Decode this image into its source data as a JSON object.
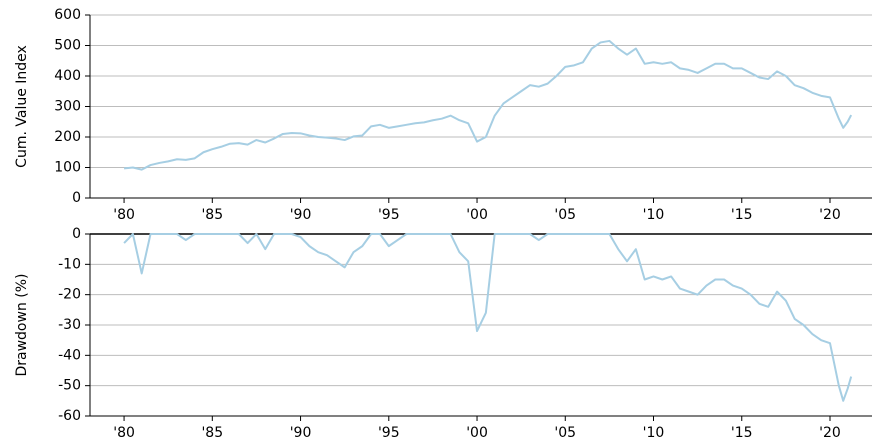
{
  "chart_data": [
    {
      "type": "line",
      "ylabel": "Cum. Value Index",
      "x": [
        1980,
        1980.5,
        1981,
        1981.5,
        1982,
        1982.5,
        1983,
        1983.5,
        1984,
        1984.5,
        1985,
        1985.5,
        1986,
        1986.5,
        1987,
        1987.5,
        1988,
        1988.5,
        1989,
        1989.5,
        1990,
        1990.5,
        1991,
        1991.5,
        1992,
        1992.5,
        1993,
        1993.5,
        1994,
        1994.5,
        1995,
        1995.5,
        1996,
        1996.5,
        1997,
        1997.5,
        1998,
        1998.5,
        1999,
        1999.5,
        2000,
        2000.5,
        2001,
        2001.5,
        2002,
        2002.5,
        2003,
        2003.5,
        2004,
        2004.5,
        2005,
        2005.5,
        2006,
        2006.5,
        2007,
        2007.5,
        2008,
        2008.5,
        2009,
        2009.5,
        2010,
        2010.5,
        2011,
        2011.5,
        2012,
        2012.5,
        2013,
        2013.5,
        2014,
        2014.5,
        2015,
        2015.5,
        2016,
        2016.5,
        2017,
        2017.5,
        2018,
        2018.5,
        2019,
        2019.5,
        2020,
        2020.5,
        2020.75,
        2021,
        2021.2
      ],
      "series": [
        {
          "color": "#a6cee3",
          "values": [
            97,
            100,
            93,
            108,
            115,
            120,
            127,
            125,
            130,
            150,
            160,
            168,
            178,
            180,
            175,
            190,
            182,
            195,
            210,
            213,
            212,
            205,
            200,
            198,
            195,
            190,
            202,
            205,
            235,
            240,
            230,
            235,
            240,
            245,
            248,
            255,
            260,
            270,
            255,
            245,
            185,
            200,
            270,
            310,
            330,
            350,
            370,
            365,
            375,
            400,
            430,
            435,
            445,
            490,
            510,
            515,
            490,
            470,
            490,
            440,
            445,
            440,
            445,
            425,
            420,
            410,
            425,
            440,
            440,
            425,
            425,
            410,
            395,
            390,
            415,
            400,
            370,
            360,
            345,
            335,
            330,
            260,
            230,
            250,
            272
          ]
        }
      ],
      "xlim": [
        1978.07,
        2022.38
      ],
      "xticks": [
        {
          "value": 1980,
          "label": "'80"
        },
        {
          "value": 1985,
          "label": "'85"
        },
        {
          "value": 1990,
          "label": "'90"
        },
        {
          "value": 1995,
          "label": "'95"
        },
        {
          "value": 2000,
          "label": "'00"
        },
        {
          "value": 2005,
          "label": "'05"
        },
        {
          "value": 2010,
          "label": "'10"
        },
        {
          "value": 2015,
          "label": "'15"
        },
        {
          "value": 2020,
          "label": "'20"
        }
      ],
      "ylim": [
        0,
        600
      ],
      "yticks": [
        0,
        100,
        200,
        300,
        400,
        500,
        600
      ],
      "grid": true
    },
    {
      "type": "line",
      "ylabel": "Drawdown (%)",
      "x": [
        1980,
        1980.5,
        1981,
        1981.5,
        1982,
        1982.5,
        1983,
        1983.5,
        1984,
        1984.5,
        1985,
        1985.5,
        1986,
        1986.5,
        1987,
        1987.5,
        1988,
        1988.5,
        1989,
        1989.5,
        1990,
        1990.5,
        1991,
        1991.5,
        1992,
        1992.5,
        1993,
        1993.5,
        1994,
        1994.5,
        1995,
        1995.5,
        1996,
        1996.5,
        1997,
        1997.5,
        1998,
        1998.5,
        1999,
        1999.5,
        2000,
        2000.5,
        2001,
        2001.5,
        2002,
        2002.5,
        2003,
        2003.5,
        2004,
        2004.5,
        2005,
        2005.5,
        2006,
        2006.5,
        2007,
        2007.5,
        2008,
        2008.5,
        2009,
        2009.5,
        2010,
        2010.5,
        2011,
        2011.5,
        2012,
        2012.5,
        2013,
        2013.5,
        2014,
        2014.5,
        2015,
        2015.5,
        2016,
        2016.5,
        2017,
        2017.5,
        2018,
        2018.5,
        2019,
        2019.5,
        2020,
        2020.5,
        2020.75,
        2021,
        2021.2
      ],
      "series": [
        {
          "color": "#a6cee3",
          "values": [
            -3,
            0,
            -13,
            0,
            0,
            0,
            0,
            -2,
            0,
            0,
            0,
            0,
            0,
            0,
            -3,
            0,
            -5,
            0,
            0,
            0,
            -1,
            -4,
            -6,
            -7,
            -9,
            -11,
            -6,
            -4,
            0,
            0,
            -4,
            -2,
            0,
            0,
            0,
            0,
            0,
            0,
            -6,
            -9,
            -32,
            -26,
            0,
            0,
            0,
            0,
            0,
            -2,
            0,
            0,
            0,
            0,
            0,
            0,
            0,
            0,
            -5,
            -9,
            -5,
            -15,
            -14,
            -15,
            -14,
            -18,
            -19,
            -20,
            -17,
            -15,
            -15,
            -17,
            -18,
            -20,
            -23,
            -24,
            -19,
            -22,
            -28,
            -30,
            -33,
            -35,
            -36,
            -50,
            -55,
            -51,
            -47
          ]
        }
      ],
      "xlim": [
        1978.07,
        2022.38
      ],
      "xticks": [
        {
          "value": 1980,
          "label": "'80"
        },
        {
          "value": 1985,
          "label": "'85"
        },
        {
          "value": 1990,
          "label": "'90"
        },
        {
          "value": 1995,
          "label": "'95"
        },
        {
          "value": 2000,
          "label": "'00"
        },
        {
          "value": 2005,
          "label": "'05"
        },
        {
          "value": 2010,
          "label": "'10"
        },
        {
          "value": 2015,
          "label": "'15"
        },
        {
          "value": 2020,
          "label": "'20"
        }
      ],
      "ylim": [
        -60,
        0
      ],
      "yticks": [
        -60,
        -50,
        -40,
        -30,
        -20,
        -10,
        0
      ],
      "grid": true
    }
  ]
}
